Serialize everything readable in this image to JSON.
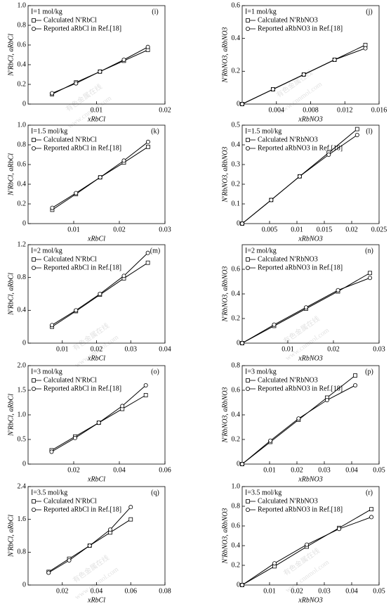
{
  "chart_data": [
    {
      "type": "line",
      "panel": "(i)",
      "condition": "I=1 mol/kg",
      "xlabel": "xRbCl",
      "ylabel": "N′RbCl, aRbCl",
      "x": [
        0.0035,
        0.007,
        0.0105,
        0.014,
        0.0175
      ],
      "xlim": [
        0,
        0.02
      ],
      "xticks": [
        0.01,
        0.02
      ],
      "ylim": [
        0,
        1
      ],
      "yticks": [
        0,
        0.2,
        0.4,
        0.6,
        0.8,
        {
          "value": 1,
          "label": "1.0"
        }
      ],
      "series": [
        {
          "name": "Calculated N′RbCl",
          "marker": "square",
          "color": "#000000",
          "values": [
            0.1,
            0.22,
            0.33,
            0.44,
            0.55
          ]
        },
        {
          "name": "Reported aRbCl in Ref.[18]",
          "marker": "circle",
          "color": "#000000",
          "values": [
            0.11,
            0.21,
            0.33,
            0.45,
            0.58
          ]
        }
      ]
    },
    {
      "type": "line",
      "panel": "(j)",
      "condition": "I=1 mol/kg",
      "xlabel": "xRbNO3",
      "ylabel": "N′RbNO3, aRbNO3",
      "x": [
        0,
        0.0036,
        0.0072,
        0.0108,
        0.0144
      ],
      "xlim": [
        0,
        0.016
      ],
      "xticks": [
        0.004,
        0.008,
        0.012,
        0.016
      ],
      "ylim": [
        0,
        0.6
      ],
      "yticks": [
        0,
        0.2,
        0.4,
        0.6
      ],
      "series": [
        {
          "name": "Calculated N′RbNO3",
          "marker": "square",
          "color": "#000000",
          "values": [
            0,
            0.09,
            0.18,
            0.27,
            0.36
          ]
        },
        {
          "name": "Reported aRbNO3 in Ref.[18]",
          "marker": "circle",
          "color": "#000000",
          "values": [
            0,
            0.09,
            0.18,
            0.27,
            0.34
          ]
        }
      ]
    },
    {
      "type": "line",
      "panel": "(k)",
      "condition": "I=1.5 mol/kg",
      "xlabel": "xRbCl",
      "ylabel": "N′RbCl, aRbCl",
      "x": [
        0.0053,
        0.0105,
        0.0158,
        0.021,
        0.0263
      ],
      "xlim": [
        0,
        0.03
      ],
      "xticks": [
        0.01,
        0.02,
        0.03
      ],
      "ylim": [
        0,
        1
      ],
      "yticks": [
        0,
        0.2,
        0.4,
        0.6,
        0.8,
        {
          "value": 1,
          "label": "1.0"
        }
      ],
      "series": [
        {
          "name": "Calculated N′RbCl",
          "marker": "square",
          "color": "#000000",
          "values": [
            0.14,
            0.3,
            0.47,
            0.62,
            0.78
          ]
        },
        {
          "name": "Reported aRbCl in Ref.[18]",
          "marker": "circle",
          "color": "#000000",
          "values": [
            0.16,
            0.31,
            0.47,
            0.64,
            0.83
          ]
        }
      ]
    },
    {
      "type": "line",
      "panel": "(l)",
      "condition": "I=1.5 mol/kg",
      "xlabel": "xRbNO3",
      "ylabel": "N′RbNO3, aRbNO3",
      "x": [
        0,
        0.0053,
        0.0105,
        0.0158,
        0.021
      ],
      "xlim": [
        0,
        0.025
      ],
      "xticks": [
        0.005,
        0.01,
        0.015,
        0.02,
        0.025
      ],
      "ylim": [
        0,
        0.5
      ],
      "yticks": [
        0,
        0.1,
        0.2,
        0.3,
        0.4,
        0.5
      ],
      "series": [
        {
          "name": "Calculated N′RbNO3",
          "marker": "square",
          "color": "#000000",
          "values": [
            0,
            0.12,
            0.24,
            0.36,
            0.48
          ]
        },
        {
          "name": "Reported aRbNO3 in Ref.[18]",
          "marker": "circle",
          "color": "#000000",
          "values": [
            0,
            0.12,
            0.24,
            0.35,
            0.45
          ]
        }
      ]
    },
    {
      "type": "line",
      "panel": "(m)",
      "condition": "I=2 mol/kg",
      "xlabel": "xRbCl",
      "ylabel": "N′RbCl, aRbCl",
      "x": [
        0.007,
        0.014,
        0.021,
        0.028,
        0.035
      ],
      "xlim": [
        0,
        0.04
      ],
      "xticks": [
        0.01,
        0.02,
        0.03,
        0.04
      ],
      "ylim": [
        0,
        1.2
      ],
      "yticks": [
        0,
        0.4,
        0.8,
        1.2
      ],
      "series": [
        {
          "name": "Calculated N′RbCl",
          "marker": "square",
          "color": "#000000",
          "values": [
            0.2,
            0.39,
            0.59,
            0.79,
            0.98
          ]
        },
        {
          "name": "Reported aRbCl in Ref.[18]",
          "marker": "circle",
          "color": "#000000",
          "values": [
            0.22,
            0.4,
            0.6,
            0.82,
            1.1
          ]
        }
      ]
    },
    {
      "type": "line",
      "panel": "(n)",
      "condition": "I=2 mol/kg",
      "xlabel": "xRbNO3",
      "ylabel": "N′RbNO3, aRbNO3",
      "x": [
        0,
        0.007,
        0.014,
        0.021,
        0.028
      ],
      "xlim": [
        0,
        0.03
      ],
      "xticks": [
        0.01,
        0.02,
        0.03
      ],
      "ylim": [
        0,
        0.8
      ],
      "yticks": [
        0,
        0.2,
        0.4,
        0.6
      ],
      "series": [
        {
          "name": "Calculated N′RbNO3",
          "marker": "square",
          "color": "#000000",
          "values": [
            0,
            0.14,
            0.28,
            0.42,
            0.57
          ]
        },
        {
          "name": "Reported aRbNO3 in Ref.[18]",
          "marker": "circle",
          "color": "#000000",
          "values": [
            0,
            0.15,
            0.29,
            0.43,
            0.53
          ]
        }
      ]
    },
    {
      "type": "line",
      "panel": "(o)",
      "condition": "I=3 mol/kg",
      "xlabel": "xRbCl",
      "ylabel": "N′RbCl, aRbCl",
      "x": [
        0.0103,
        0.0206,
        0.031,
        0.0413,
        0.0516
      ],
      "xlim": [
        0,
        0.06
      ],
      "xticks": [
        0.02,
        0.04,
        0.06
      ],
      "ylim": [
        0,
        2
      ],
      "yticks": [
        0,
        0.5,
        {
          "value": 1,
          "label": "1.0"
        },
        1.5,
        {
          "value": 2,
          "label": "2.0"
        }
      ],
      "series": [
        {
          "name": "Calculated N′RbCl",
          "marker": "square",
          "color": "#000000",
          "values": [
            0.28,
            0.56,
            0.84,
            1.12,
            1.4
          ]
        },
        {
          "name": "Reported aRbCl in Ref.[18]",
          "marker": "circle",
          "color": "#000000",
          "values": [
            0.25,
            0.53,
            0.84,
            1.18,
            1.6
          ]
        }
      ]
    },
    {
      "type": "line",
      "panel": "(p)",
      "condition": "I=3 mol/kg",
      "xlabel": "xRbNO3",
      "ylabel": "N′RbNO3, aRbNO3",
      "x": [
        0,
        0.0103,
        0.0206,
        0.031,
        0.0413
      ],
      "xlim": [
        0,
        0.05
      ],
      "xticks": [
        0.01,
        0.02,
        0.03,
        0.04,
        0.05
      ],
      "ylim": [
        0,
        0.8
      ],
      "yticks": [
        0,
        0.2,
        0.4,
        0.6,
        0.8
      ],
      "series": [
        {
          "name": "Calculated N′RbNO3",
          "marker": "square",
          "color": "#000000",
          "values": [
            0,
            0.18,
            0.36,
            0.54,
            0.72
          ]
        },
        {
          "name": "Reported aRbNO3 in Ref.[18]",
          "marker": "circle",
          "color": "#000000",
          "values": [
            0,
            0.19,
            0.37,
            0.52,
            0.64
          ]
        }
      ]
    },
    {
      "type": "line",
      "panel": "(q)",
      "condition": "I=3.5 mol/kg",
      "xlabel": "xRbCl",
      "ylabel": "N′RbCl, aRbCl",
      "x": [
        0.012,
        0.024,
        0.036,
        0.048,
        0.06
      ],
      "xlim": [
        0,
        0.08
      ],
      "xticks": [
        0.02,
        0.04,
        0.06,
        0.08
      ],
      "ylim": [
        0,
        2.4
      ],
      "yticks": [
        0,
        0.8,
        1.6,
        2.4
      ],
      "series": [
        {
          "name": "Calculated N′RbCl",
          "marker": "square",
          "color": "#000000",
          "values": [
            0.32,
            0.64,
            0.96,
            1.28,
            1.6
          ]
        },
        {
          "name": "Reported aRbCl in Ref.[18]",
          "marker": "circle",
          "color": "#000000",
          "values": [
            0.3,
            0.6,
            0.96,
            1.35,
            1.9
          ]
        }
      ]
    },
    {
      "type": "line",
      "panel": "(r)",
      "condition": "I=3.5 mol/kg",
      "xlabel": "xRbNO3",
      "ylabel": "N′RbNO3, aRbNO3",
      "x": [
        0,
        0.0118,
        0.0236,
        0.0354,
        0.0472
      ],
      "xlim": [
        0,
        0.05
      ],
      "xticks": [
        0.01,
        0.02,
        0.03,
        0.04,
        0.05
      ],
      "ylim": [
        0,
        1
      ],
      "yticks": [
        0,
        0.2,
        0.4,
        0.6,
        0.8,
        {
          "value": 1,
          "label": "1.0"
        }
      ],
      "series": [
        {
          "name": "Calculated N′RbNO3",
          "marker": "square",
          "color": "#000000",
          "values": [
            0,
            0.19,
            0.39,
            0.58,
            0.77
          ]
        },
        {
          "name": "Reported aRbNO3 in Ref.[18]",
          "marker": "circle",
          "color": "#000000",
          "values": [
            0,
            0.22,
            0.41,
            0.57,
            0.69
          ]
        }
      ]
    }
  ],
  "watermark": {
    "text": "有色金属在线",
    "url": "www.cnnmol.com"
  }
}
